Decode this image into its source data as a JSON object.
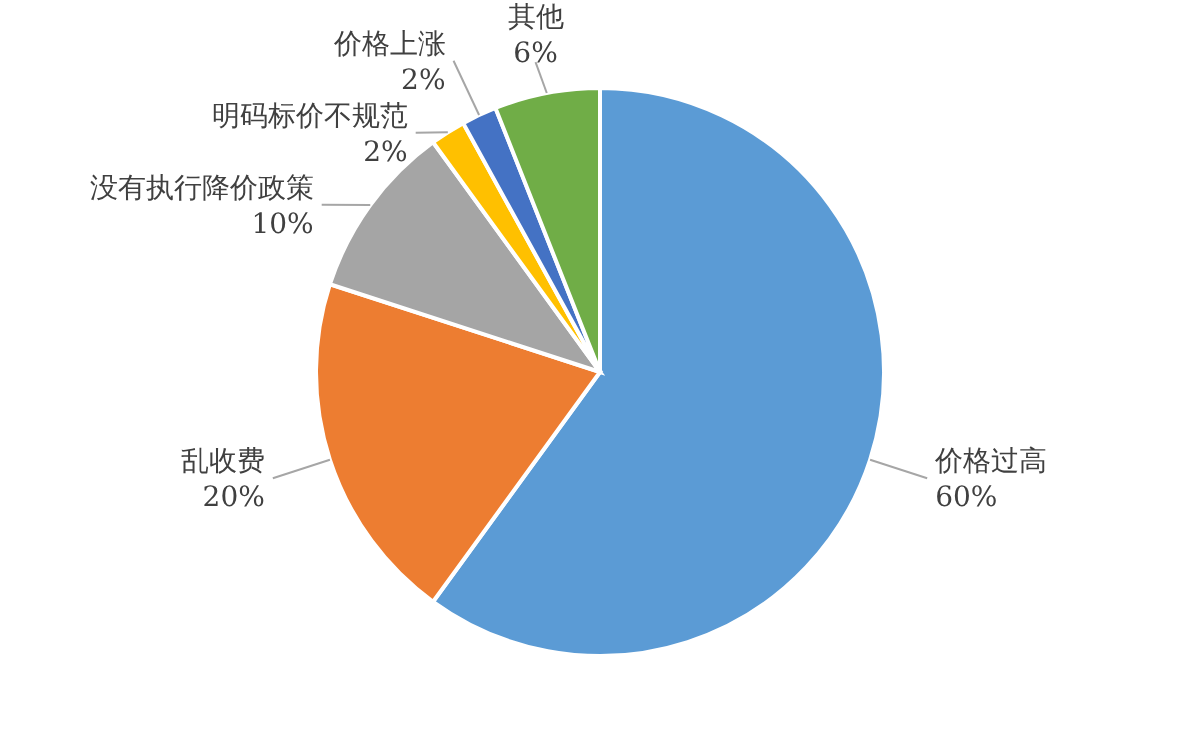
{
  "chart_data": {
    "type": "pie",
    "categories": [
      "价格过高",
      "乱收费",
      "没有执行降价政策",
      "明码标价不规范",
      "价格上涨",
      "其他"
    ],
    "values": [
      60,
      20,
      10,
      2,
      2,
      6
    ],
    "value_labels": [
      "60%",
      "20%",
      "10%",
      "2%",
      "2%",
      "6%"
    ],
    "colors": [
      "#5b9bd5",
      "#ed7d31",
      "#a5a5a5",
      "#ffc000",
      "#4472c4",
      "#70ad47"
    ]
  }
}
